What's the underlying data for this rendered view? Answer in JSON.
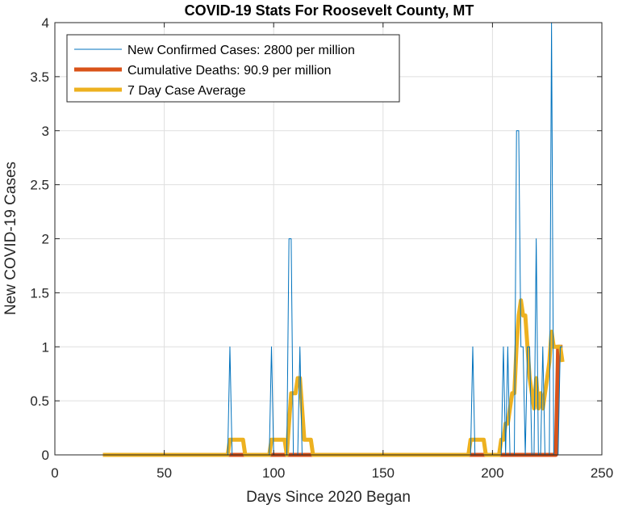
{
  "chart_data": {
    "type": "line",
    "title": "COVID-19 Stats For Roosevelt County, MT",
    "xlabel": "Days Since 2020 Began",
    "ylabel": "New COVID-19 Cases",
    "xlim": [
      0,
      250
    ],
    "ylim": [
      0,
      4
    ],
    "xticks": [
      0,
      50,
      100,
      150,
      200,
      250
    ],
    "yticks": [
      0,
      0.5,
      1,
      1.5,
      2,
      2.5,
      3,
      3.5,
      4
    ],
    "xtick_labels": [
      "0",
      "50",
      "100",
      "150",
      "200",
      "250"
    ],
    "ytick_labels": [
      "0",
      "0.5",
      "1",
      "1.5",
      "2",
      "2.5",
      "3",
      "3.5",
      "4"
    ],
    "grid": true,
    "legend_position": "top-left",
    "series": [
      {
        "name": "New Confirmed Cases: 2800 per million",
        "color": "#0072BD",
        "line_width": 1,
        "x": [
          22,
          79,
          80,
          81,
          98,
          99,
          100,
          106,
          107,
          108,
          109,
          110,
          111,
          112,
          113,
          190,
          191,
          192,
          204,
          205,
          206,
          207,
          208,
          210,
          211,
          212,
          213,
          214,
          215,
          216,
          217,
          218,
          219,
          220,
          221,
          222,
          223,
          224,
          225,
          226,
          227,
          228,
          229,
          230,
          231,
          232
        ],
        "y": [
          0,
          0,
          1,
          0,
          0,
          1,
          0,
          0,
          2,
          2,
          0,
          0,
          0,
          1,
          0,
          0,
          1,
          0,
          0,
          1,
          0,
          1,
          0,
          0,
          3,
          3,
          1,
          1,
          0,
          1,
          1,
          0,
          0,
          2,
          0,
          0,
          1,
          0,
          0,
          0,
          4,
          0,
          0,
          0,
          1,
          1
        ]
      },
      {
        "name": "Cumulative Deaths: 90.9 per million",
        "color": "#D95319",
        "line_width": 5,
        "x": [
          22,
          229,
          230,
          232
        ],
        "y": [
          0,
          0,
          1,
          1
        ]
      },
      {
        "name": "7 Day Case Average",
        "color": "#EDB120",
        "line_width": 5,
        "x": [
          22,
          79,
          80,
          86,
          87,
          98,
          99,
          105,
          106,
          107,
          108,
          109,
          110,
          111,
          112,
          113,
          114,
          115,
          116,
          117,
          118,
          189,
          190,
          196,
          197,
          203,
          204,
          205,
          206,
          207,
          208,
          209,
          210,
          211,
          212,
          213,
          214,
          215,
          216,
          217,
          218,
          219,
          220,
          221,
          222,
          223,
          224,
          225,
          226,
          227,
          228,
          229,
          230,
          231,
          232
        ],
        "y": [
          0,
          0,
          0.14,
          0.14,
          0,
          0,
          0.14,
          0.14,
          0,
          0.29,
          0.57,
          0.57,
          0.57,
          0.71,
          0.71,
          0.43,
          0.14,
          0.14,
          0.14,
          0.14,
          0,
          0,
          0.14,
          0.14,
          0,
          0,
          0.14,
          0.14,
          0.29,
          0.29,
          0.43,
          0.57,
          0.57,
          1.0,
          1.29,
          1.43,
          1.29,
          1.29,
          1.0,
          0.71,
          0.57,
          0.43,
          0.71,
          0.43,
          0.57,
          0.43,
          0.57,
          0.71,
          0.86,
          1.14,
          1.0,
          1.0,
          1.0,
          1.0,
          0.86
        ]
      }
    ]
  }
}
